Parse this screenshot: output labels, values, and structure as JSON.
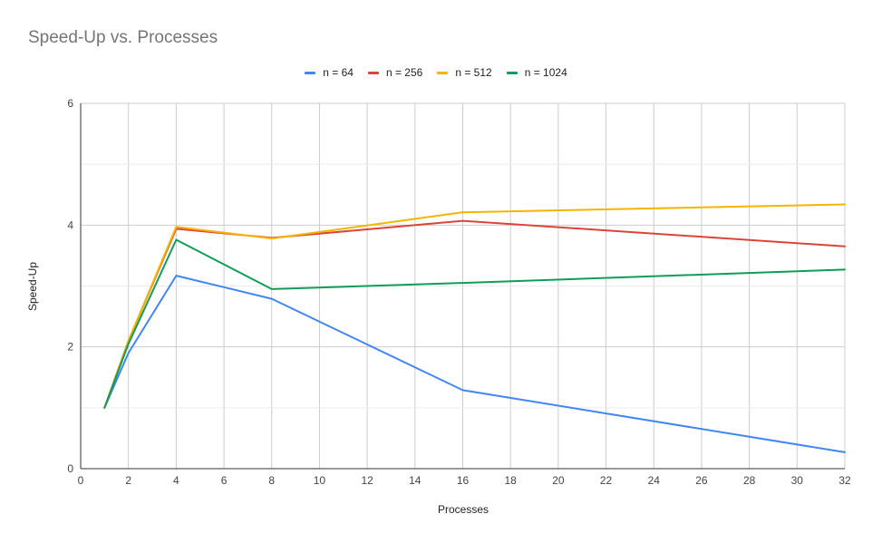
{
  "chart_data": {
    "type": "line",
    "title": "Speed-Up vs. Processes",
    "xlabel": "Processes",
    "ylabel": "Speed-Up",
    "xlim": [
      0,
      32
    ],
    "ylim": [
      0,
      6
    ],
    "x_ticks": [
      "0",
      "2",
      "4",
      "6",
      "8",
      "10",
      "12",
      "14",
      "16",
      "18",
      "20",
      "22",
      "24",
      "26",
      "28",
      "30",
      "32"
    ],
    "y_ticks": [
      "0",
      "2",
      "4",
      "6"
    ],
    "grid": true,
    "legend_position": "top",
    "x": [
      1,
      2,
      4,
      8,
      16,
      32
    ],
    "series": [
      {
        "name": "n = 64",
        "color": "#4285F4",
        "values": [
          1,
          1.9,
          3.17,
          2.79,
          1.29,
          0.27
        ]
      },
      {
        "name": "n = 256",
        "color": "#DB4437",
        "values": [
          1,
          2.1,
          3.94,
          3.79,
          4.07,
          3.65
        ]
      },
      {
        "name": "n = 512",
        "color": "#F4B400",
        "values": [
          1,
          2.1,
          3.97,
          3.78,
          4.21,
          4.34
        ]
      },
      {
        "name": "n = 1024",
        "color": "#0F9D58",
        "values": [
          1,
          2.05,
          3.76,
          2.95,
          3.05,
          3.27
        ]
      }
    ]
  }
}
